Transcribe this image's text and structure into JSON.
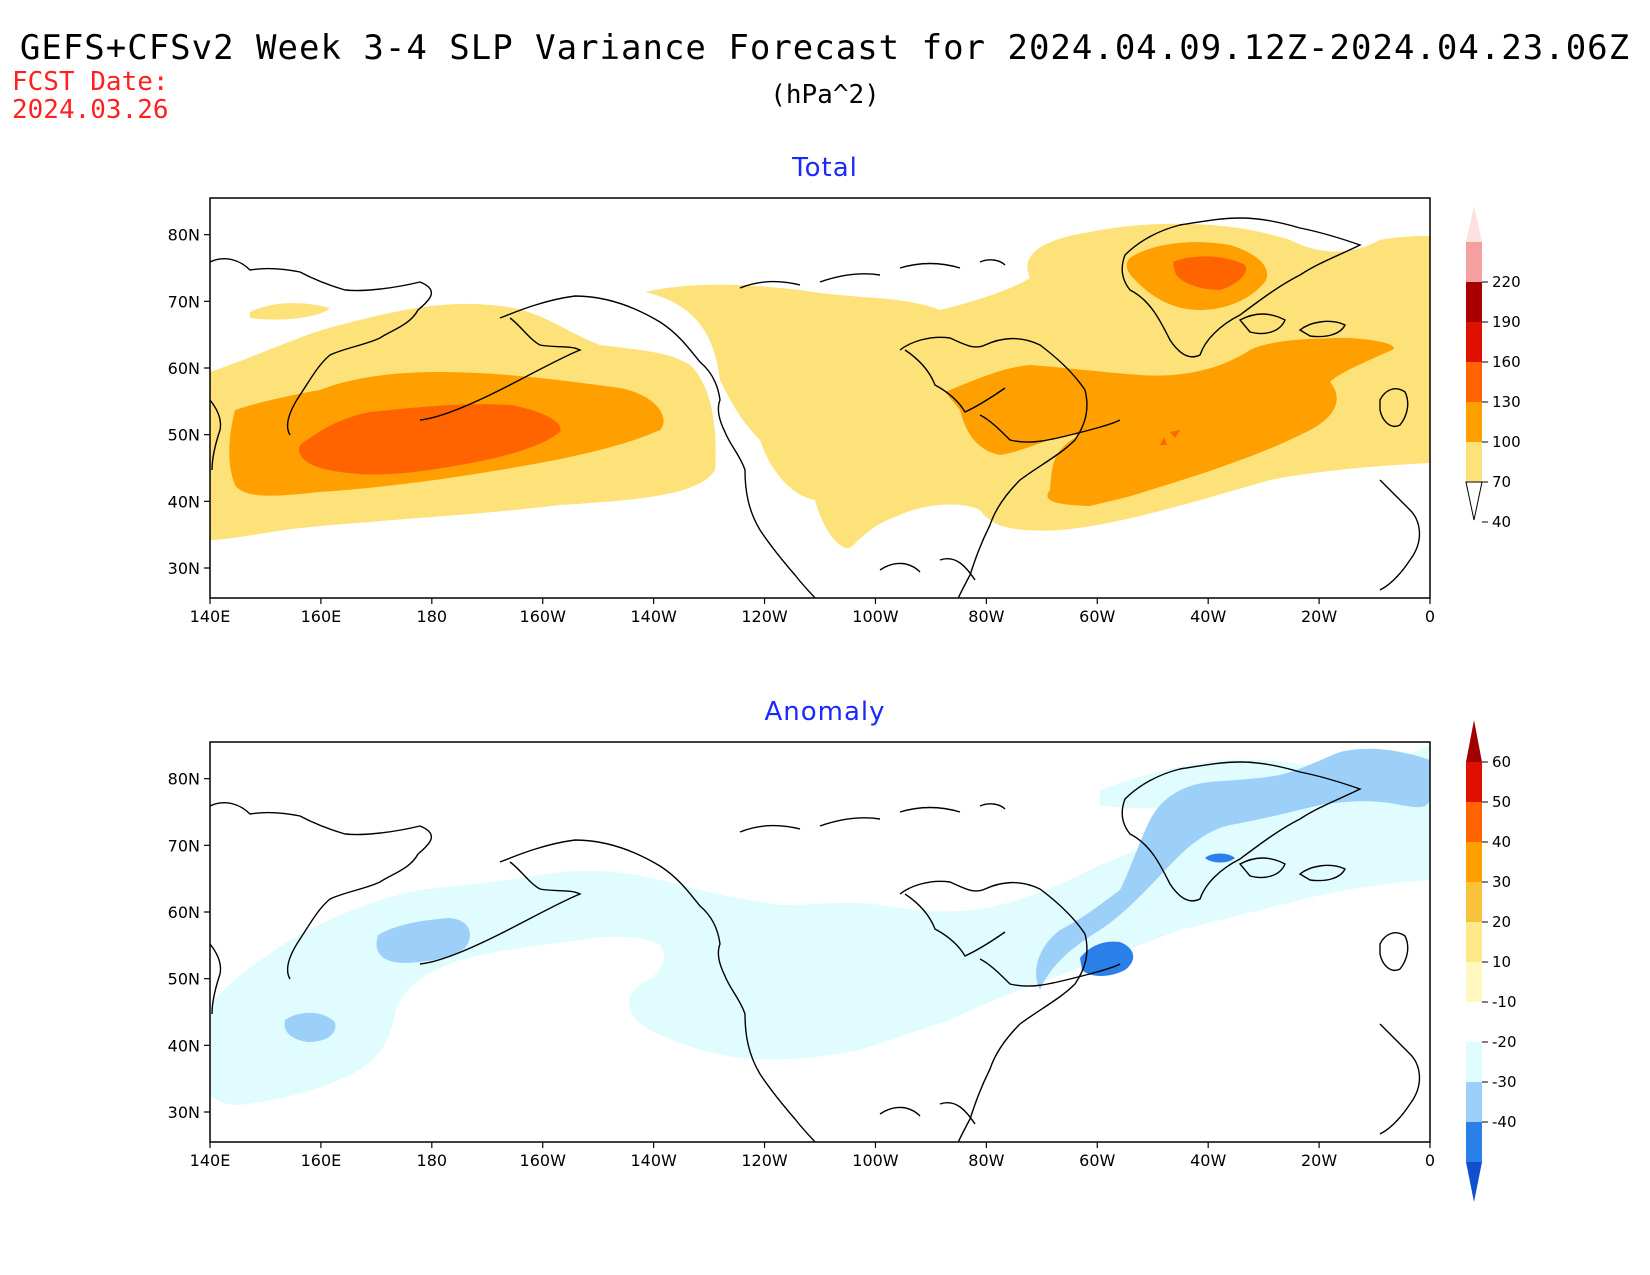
{
  "header": {
    "title": "GEFS+CFSv2 Week 3-4 SLP Variance Forecast for 2024.04.09.12Z-2024.04.23.06Z",
    "units": "(hPa^2)",
    "fcst_label": "FCST Date:",
    "fcst_date": "2024.03.26"
  },
  "panels": {
    "total": {
      "title": "Total"
    },
    "anomaly": {
      "title": "Anomaly"
    }
  },
  "axes": {
    "lat_ticks": [
      "80N",
      "70N",
      "60N",
      "50N",
      "40N",
      "30N"
    ],
    "lon_ticks": [
      "140E",
      "160E",
      "180",
      "160W",
      "140W",
      "120W",
      "100W",
      "80W",
      "60W",
      "40W",
      "20W",
      "0"
    ]
  },
  "legends": {
    "total": {
      "labels": [
        "220",
        "190",
        "160",
        "130",
        "100",
        "70",
        "40"
      ],
      "colors": [
        "#fde0e0",
        "#f4a0a0",
        "#a80000",
        "#e01000",
        "#ff6400",
        "#ffa000",
        "#fde27a"
      ]
    },
    "anomaly": {
      "labels": [
        "60",
        "50",
        "40",
        "30",
        "20",
        "10",
        "-10",
        "-20",
        "-30",
        "-40"
      ],
      "colors": [
        "#a00000",
        "#e01000",
        "#ff6400",
        "#ffa000",
        "#f8c23a",
        "#fde88a",
        "#fff8c0",
        "#ffffff",
        "#e0fcff",
        "#9cd0f8",
        "#2a80e8",
        "#1050d0"
      ]
    }
  }
}
